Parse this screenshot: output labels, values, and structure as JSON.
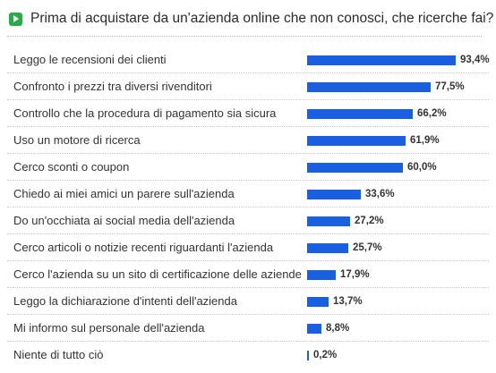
{
  "header": {
    "title": "Prima di acquistare da un'azienda online che non conosci, che ricerche fai?",
    "icon": "play-icon"
  },
  "chart_data": {
    "type": "bar",
    "orientation": "horizontal",
    "title": "Prima di acquistare da un'azienda online che non conosci, che ricerche fai?",
    "xlabel": "",
    "ylabel": "",
    "xlim": [
      0,
      100
    ],
    "grid": false,
    "bar_color": "#1a5fe0",
    "categories": [
      "Leggo le recensioni dei clienti",
      "Confronto i prezzi tra diversi rivenditori",
      "Controllo che la procedura di pagamento sia sicura",
      "Uso un motore di ricerca",
      "Cerco sconti o coupon",
      "Chiedo ai miei amici un parere sull'azienda",
      "Do un'occhiata ai social media dell'azienda",
      "Cerco articoli o notizie recenti riguardanti l'azienda",
      "Cerco l'azienda su un sito di certificazione delle aziende",
      "Leggo la dichiarazione d'intenti dell'azienda",
      "Mi informo sul personale dell'azienda",
      "Niente di tutto ciò"
    ],
    "values": [
      93.4,
      77.5,
      66.2,
      61.9,
      60.0,
      33.6,
      27.2,
      25.7,
      17.9,
      13.7,
      8.8,
      0.2
    ],
    "value_labels": [
      "93,4%",
      "77,5%",
      "66,2%",
      "61,9%",
      "60,0%",
      "33,6%",
      "27,2%",
      "25,7%",
      "17,9%",
      "13,7%",
      "8,8%",
      "0,2%"
    ]
  }
}
